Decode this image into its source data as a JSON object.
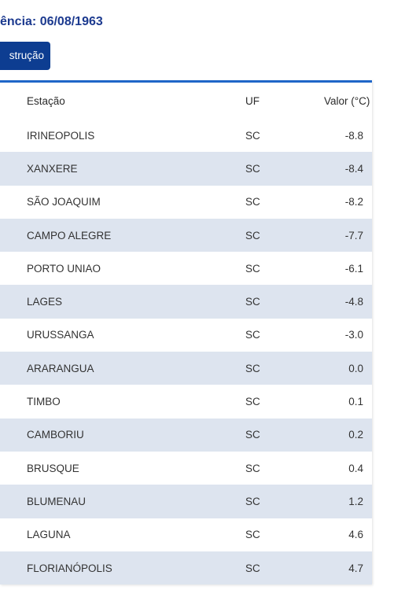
{
  "header": {
    "reference_date": "ência: 06/08/1963",
    "button_label": "strução"
  },
  "table": {
    "columns": [
      "Estação",
      "UF",
      "Valor (°C)"
    ],
    "rows": [
      {
        "station": "IRINEOPOLIS",
        "uf": "SC",
        "value": "-8.8"
      },
      {
        "station": "XANXERE",
        "uf": "SC",
        "value": "-8.4"
      },
      {
        "station": "SÃO JOAQUIM",
        "uf": "SC",
        "value": "-8.2"
      },
      {
        "station": "CAMPO ALEGRE",
        "uf": "SC",
        "value": "-7.7"
      },
      {
        "station": "PORTO UNIAO",
        "uf": "SC",
        "value": "-6.1"
      },
      {
        "station": "LAGES",
        "uf": "SC",
        "value": "-4.8"
      },
      {
        "station": "URUSSANGA",
        "uf": "SC",
        "value": "-3.0"
      },
      {
        "station": "ARARANGUA",
        "uf": "SC",
        "value": "0.0"
      },
      {
        "station": "TIMBO",
        "uf": "SC",
        "value": "0.1"
      },
      {
        "station": "CAMBORIU",
        "uf": "SC",
        "value": "0.2"
      },
      {
        "station": "BRUSQUE",
        "uf": "SC",
        "value": "0.4"
      },
      {
        "station": "BLUMENAU",
        "uf": "SC",
        "value": "1.2"
      },
      {
        "station": "LAGUNA",
        "uf": "SC",
        "value": "4.6"
      },
      {
        "station": "FLORIANÓPOLIS",
        "uf": "SC",
        "value": "4.7"
      }
    ]
  },
  "colors": {
    "accent": "#1f66c8",
    "button": "#0d3d91",
    "title": "#1c3a8f",
    "row_stripe": "#dde4ef"
  }
}
